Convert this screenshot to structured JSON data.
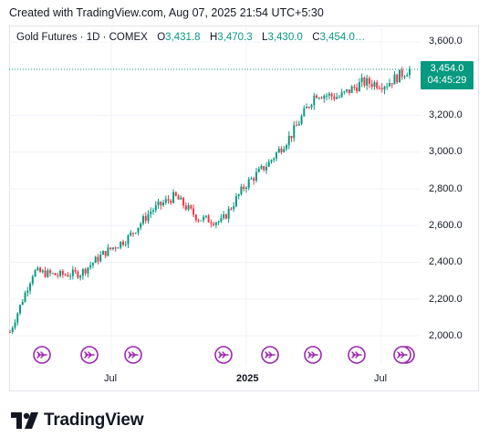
{
  "caption": "Created with TradingView.com, Aug 07, 2025 21:54 UTC+5:30",
  "legend": {
    "symbol": "Gold Futures · 1D · COMEX",
    "open_label": "O",
    "open_value": "3,431.8",
    "high_label": "H",
    "high_value": "3,470.3",
    "low_label": "L",
    "low_value": "3,430.0",
    "close_label": "C",
    "close_value": "3,454.0…"
  },
  "price_axis": [
    "3,600.0",
    "3,200.0",
    "3,000.0",
    "2,800.0",
    "2,600.0",
    "2,400.0",
    "2,200.0",
    "2,000.0"
  ],
  "time_axis": [
    "Jul",
    "2025",
    "Jul"
  ],
  "price_tag": {
    "price": "3,454.0",
    "countdown": "04:45:29"
  },
  "brand": {
    "name": "TradingView"
  },
  "colors": {
    "up": "#089981",
    "down": "#f23645",
    "event_icon": "#9c27b0",
    "current_price_line": "#089981"
  },
  "event_icons": [
    "dividend-arrow-icon",
    "dividend-arrow-icon",
    "dividend-arrow-icon",
    "dividend-arrow-icon",
    "dividend-arrow-icon",
    "dividend-arrow-icon",
    "dividend-arrow-icon",
    "dividend-arrow-icon"
  ],
  "chart_data": {
    "type": "candlestick",
    "x_start": "2024-03",
    "x_end": "2025-08",
    "ylim": [
      1950,
      3650
    ],
    "y_ticks": [
      2000,
      2200,
      2400,
      2600,
      2800,
      3000,
      3200,
      3600
    ],
    "last_price": 3454.0,
    "trend_points": [
      {
        "x": "2024-03",
        "y": 2020
      },
      {
        "x": "2024-04",
        "y": 2350
      },
      {
        "x": "2024-05",
        "y": 2330
      },
      {
        "x": "2024-06",
        "y": 2340
      },
      {
        "x": "2024-07",
        "y": 2450
      },
      {
        "x": "2024-08",
        "y": 2530
      },
      {
        "x": "2024-09",
        "y": 2680
      },
      {
        "x": "2024-10",
        "y": 2760
      },
      {
        "x": "2024-11",
        "y": 2640
      },
      {
        "x": "2024-12",
        "y": 2620
      },
      {
        "x": "2025-01",
        "y": 2820
      },
      {
        "x": "2025-02",
        "y": 2940
      },
      {
        "x": "2025-03",
        "y": 3100
      },
      {
        "x": "2025-04",
        "y": 3320
      },
      {
        "x": "2025-05",
        "y": 3300
      },
      {
        "x": "2025-06",
        "y": 3380
      },
      {
        "x": "2025-07",
        "y": 3370
      },
      {
        "x": "2025-08",
        "y": 3454
      }
    ],
    "grid": true
  }
}
